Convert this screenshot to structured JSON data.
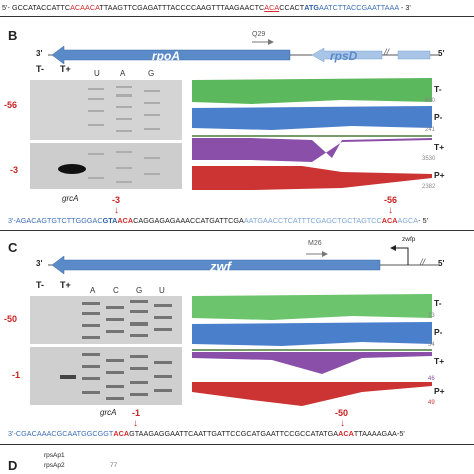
{
  "top_seq": {
    "prefix": "5'- GCCATACCATTC",
    "r1": "ACAACA",
    "mid": "TTAAGTTCGAGATTTACCCCAAGTTTAAGAACTC",
    "r2": "ACA",
    "mid2": "CCACT",
    "atg": "ATG",
    "tail": "AATCTTACCGAATTAAA",
    "end": " - 3'"
  },
  "panel_b": {
    "letter": "B",
    "gene_main": "rpoA",
    "gene_second": "rpsD",
    "marker": "Q29",
    "prime3": "3'",
    "prime5": "5'",
    "break_mark": "//",
    "lanes": [
      "T-",
      "T+",
      "U",
      "A",
      "G"
    ],
    "pos1": "-56",
    "pos2": "-3",
    "grca": "grcA",
    "tracks": [
      {
        "label": "T-",
        "value": "890",
        "color": "#5cb85c"
      },
      {
        "label": "P-",
        "value": "241",
        "color": "#4a7fcc"
      },
      {
        "label": "T+",
        "value": "3530",
        "color": "#8a4fa8"
      },
      {
        "label": "P+",
        "value": "2382",
        "color": "#cc3333"
      }
    ],
    "arrow1": "-3",
    "arrow2": "-56",
    "seq": {
      "a": "3'-AGACAGTGTCTTGGGAC",
      "b": "GTA",
      "c": "ACA",
      "d": "CAGGAGAGAAACCATGATTCGA",
      "e": "AATGAACCTCATTTCGAGCTGCTAGTCC",
      "f": "ACA",
      "g": "AGCA",
      "h": "- 5'"
    }
  },
  "panel_c": {
    "letter": "C",
    "gene_main": "zwf",
    "marker": "M26",
    "promoter": "zwfp",
    "prime3": "3'",
    "prime5": "5'",
    "break_mark": "//",
    "lanes": [
      "T-",
      "T+",
      "A",
      "C",
      "G",
      "U"
    ],
    "pos1": "-50",
    "pos2": "-1",
    "grca": "grcA",
    "tracks": [
      {
        "label": "T-",
        "value": "23",
        "color": "#6cc46c"
      },
      {
        "label": "P-",
        "value": "54",
        "color": "#4a7fcc"
      },
      {
        "label": "T+",
        "value": "46",
        "color": "#8a4fa8"
      },
      {
        "label": "P+",
        "value": "49",
        "color": "#cc3333"
      }
    ],
    "arrow1": "-1",
    "arrow2": "-50",
    "seq": {
      "a": "3'-CGACAAACGCAATGGCGGT",
      "b": "ACA",
      "c": "GTAAGAGGAATTCAATTGATTCCGCATGAATTCCGCCATATGA",
      "d": "ACA",
      "e": "TTAAAAGAA-5'"
    }
  },
  "panel_d": {
    "letter": "D",
    "label1": "rpsAp1",
    "label2": "rpsAp2",
    "value": "77"
  }
}
